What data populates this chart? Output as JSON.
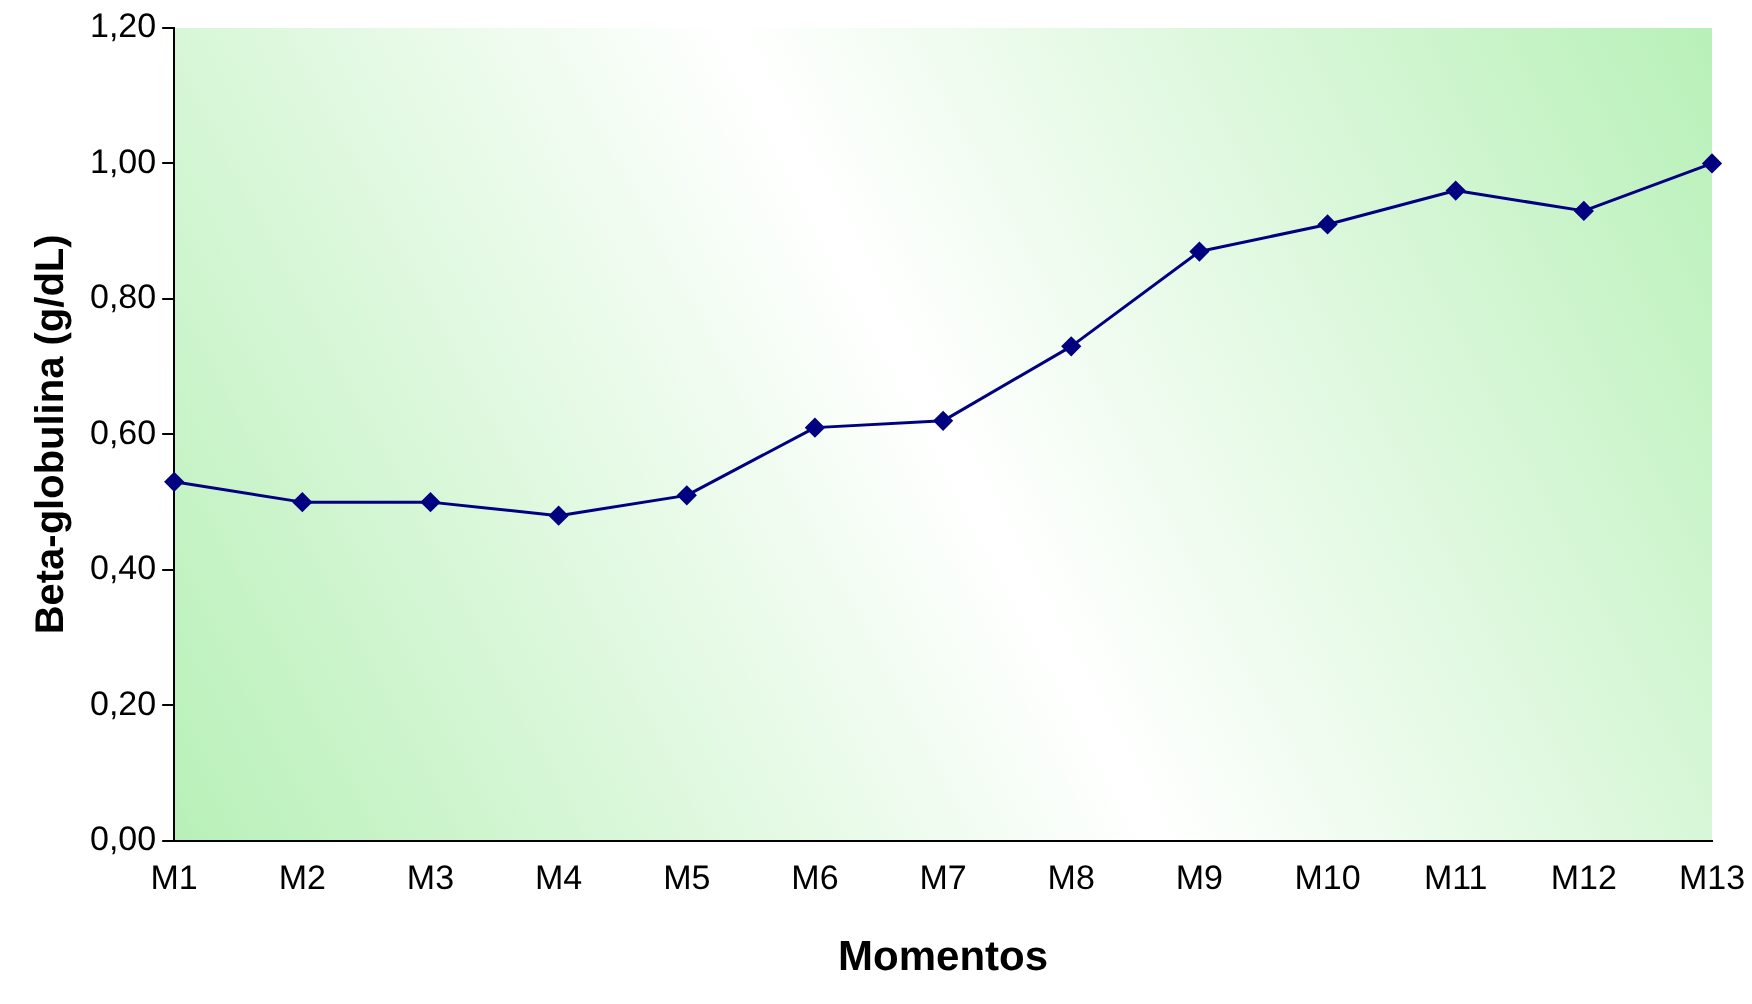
{
  "chart_data": {
    "type": "line",
    "xlabel": "Momentos",
    "ylabel": "Beta-globulina (g/dL)",
    "categories": [
      "M1",
      "M2",
      "M3",
      "M4",
      "M5",
      "M6",
      "M7",
      "M8",
      "M9",
      "M10",
      "M11",
      "M12",
      "M13"
    ],
    "series": [
      {
        "color": "#000080",
        "values": [
          0.53,
          0.5,
          0.5,
          0.48,
          0.51,
          0.61,
          0.62,
          0.73,
          0.87,
          0.91,
          0.96,
          0.93,
          1.0
        ]
      }
    ],
    "ylim": [
      0,
      1.2
    ],
    "yticks": [
      {
        "value": 0,
        "label": "0,00"
      },
      {
        "value": 0.2,
        "label": "0,20"
      },
      {
        "value": 0.4,
        "label": "0,40"
      },
      {
        "value": 0.6,
        "label": "0,60"
      },
      {
        "value": 0.8,
        "label": "0,80"
      },
      {
        "value": 1.0,
        "label": "1,00"
      },
      {
        "value": 1.2,
        "label": "1,20"
      }
    ],
    "grid": false,
    "legend": false,
    "marker": "diamond",
    "line_style": "solid"
  }
}
